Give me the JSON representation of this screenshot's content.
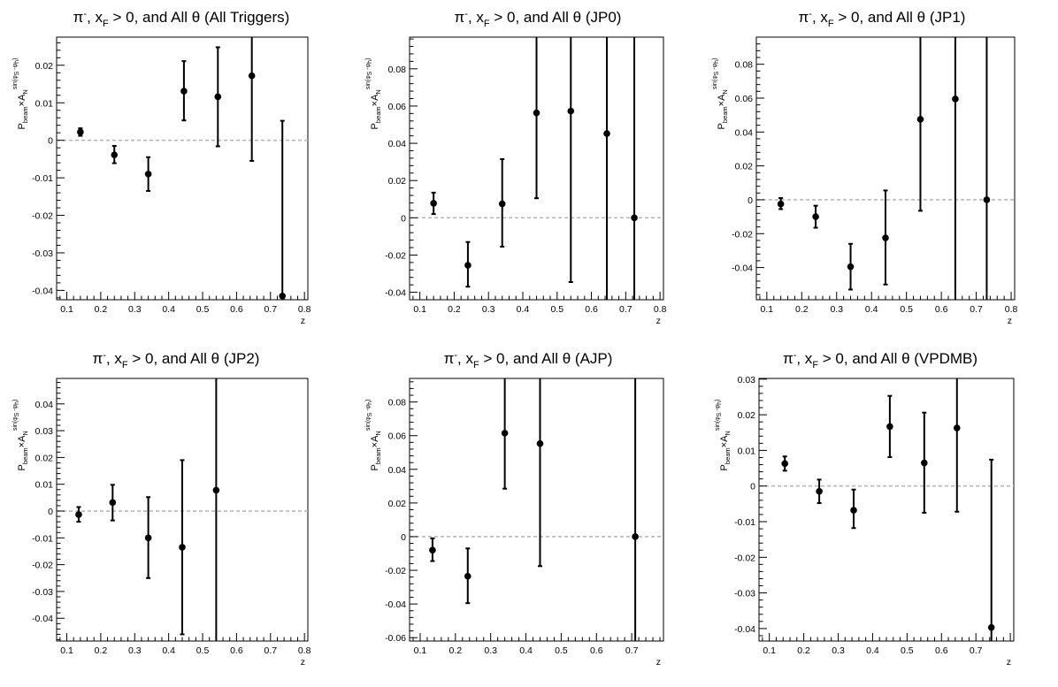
{
  "common": {
    "ylabel": {
      "p": "P",
      "beam": "beam",
      "times": "×A",
      "n": "N",
      "sup": "sin(φ",
      "s": "S",
      "minus": " -φ",
      "h": "h",
      "close": ")"
    },
    "xlabel": "z",
    "title_parts": {
      "pi": "π",
      "minus": "-",
      "mid1": ", x",
      "f": "F",
      "mid2": " > 0, and All θ "
    }
  },
  "chart_data": [
    {
      "type": "scatter",
      "trigger": "(All Triggers)",
      "xlabel": "z",
      "xlim": [
        0.07,
        0.81
      ],
      "ylim": [
        -0.0425,
        0.0275
      ],
      "xticks": [
        "0.1",
        "0.2",
        "0.3",
        "0.4",
        "0.5",
        "0.6",
        "0.7",
        "0.8"
      ],
      "yticks": [
        {
          "v": 0.02,
          "t": "0.02"
        },
        {
          "v": 0.01,
          "t": "0.01"
        },
        {
          "v": 0,
          "t": "0"
        },
        {
          "v": -0.01,
          "t": "-0.01"
        },
        {
          "v": -0.02,
          "t": "-0.02"
        },
        {
          "v": -0.03,
          "t": "-0.03"
        },
        {
          "v": -0.04,
          "t": "-0.04"
        }
      ],
      "points": [
        {
          "x": 0.14,
          "y": 0.0022,
          "lo": 0.0012,
          "hi": 0.0032
        },
        {
          "x": 0.24,
          "y": -0.0039,
          "lo": -0.0061,
          "hi": -0.0015
        },
        {
          "x": 0.34,
          "y": -0.009,
          "lo": -0.0135,
          "hi": -0.0045
        },
        {
          "x": 0.445,
          "y": 0.0131,
          "lo": 0.0053,
          "hi": 0.0211
        },
        {
          "x": 0.545,
          "y": 0.0116,
          "lo": -0.0016,
          "hi": 0.0248
        },
        {
          "x": 0.645,
          "y": 0.0172,
          "lo": -0.0055,
          "hi": 0.0275
        },
        {
          "x": 0.735,
          "y": -0.0415,
          "lo": -0.0425,
          "hi": 0.0052
        }
      ]
    },
    {
      "type": "scatter",
      "trigger": "(JP0)",
      "xlabel": "z",
      "xlim": [
        0.07,
        0.81
      ],
      "ylim": [
        -0.044,
        0.097
      ],
      "xticks": [
        "0.1",
        "0.2",
        "0.3",
        "0.4",
        "0.5",
        "0.6",
        "0.7",
        "0.8"
      ],
      "yticks": [
        {
          "v": 0.08,
          "t": "0.08"
        },
        {
          "v": 0.06,
          "t": "0.06"
        },
        {
          "v": 0.04,
          "t": "0.04"
        },
        {
          "v": 0.02,
          "t": "0.02"
        },
        {
          "v": 0,
          "t": "0"
        },
        {
          "v": -0.02,
          "t": "-0.02"
        },
        {
          "v": -0.04,
          "t": "-0.04"
        }
      ],
      "points": [
        {
          "x": 0.14,
          "y": 0.0078,
          "lo": 0.002,
          "hi": 0.0135
        },
        {
          "x": 0.24,
          "y": -0.0255,
          "lo": -0.037,
          "hi": -0.013
        },
        {
          "x": 0.34,
          "y": 0.0075,
          "lo": -0.0155,
          "hi": 0.0315
        },
        {
          "x": 0.44,
          "y": 0.0563,
          "lo": 0.0105,
          "hi": 0.097
        },
        {
          "x": 0.54,
          "y": 0.0573,
          "lo": -0.0345,
          "hi": 0.097
        },
        {
          "x": 0.645,
          "y": 0.0452,
          "lo": -0.044,
          "hi": 0.097
        },
        {
          "x": 0.725,
          "y": 0.0,
          "lo": -0.044,
          "hi": 0.097
        }
      ]
    },
    {
      "type": "scatter",
      "trigger": "(JP1)",
      "xlabel": "z",
      "xlim": [
        0.07,
        0.81
      ],
      "ylim": [
        -0.059,
        0.096
      ],
      "xticks": [
        "0.1",
        "0.2",
        "0.3",
        "0.4",
        "0.5",
        "0.6",
        "0.7",
        "0.8"
      ],
      "yticks": [
        {
          "v": 0.08,
          "t": "0.08"
        },
        {
          "v": 0.06,
          "t": "0.06"
        },
        {
          "v": 0.04,
          "t": "0.04"
        },
        {
          "v": 0.02,
          "t": "0.02"
        },
        {
          "v": 0,
          "t": "0"
        },
        {
          "v": -0.02,
          "t": "-0.02"
        },
        {
          "v": -0.04,
          "t": "-0.04"
        }
      ],
      "points": [
        {
          "x": 0.14,
          "y": -0.0025,
          "lo": -0.0055,
          "hi": 0.001
        },
        {
          "x": 0.24,
          "y": -0.01,
          "lo": -0.0165,
          "hi": -0.0035
        },
        {
          "x": 0.34,
          "y": -0.0395,
          "lo": -0.053,
          "hi": -0.026
        },
        {
          "x": 0.44,
          "y": -0.0225,
          "lo": -0.05,
          "hi": 0.0055
        },
        {
          "x": 0.54,
          "y": 0.0475,
          "lo": -0.0065,
          "hi": 0.096
        },
        {
          "x": 0.64,
          "y": 0.0595,
          "lo": -0.059,
          "hi": 0.096
        },
        {
          "x": 0.73,
          "y": 0.0,
          "lo": -0.059,
          "hi": 0.096
        }
      ]
    },
    {
      "type": "scatter",
      "trigger": "(JP2)",
      "xlabel": "z",
      "xlim": [
        0.07,
        0.81
      ],
      "ylim": [
        -0.0485,
        0.0495
      ],
      "xticks": [
        "0.1",
        "0.2",
        "0.3",
        "0.4",
        "0.5",
        "0.6",
        "0.7",
        "0.8"
      ],
      "yticks": [
        {
          "v": 0.04,
          "t": "0.04"
        },
        {
          "v": 0.03,
          "t": "0.03"
        },
        {
          "v": 0.02,
          "t": "0.02"
        },
        {
          "v": 0.01,
          "t": "0.01"
        },
        {
          "v": 0,
          "t": "0"
        },
        {
          "v": -0.01,
          "t": "-0.01"
        },
        {
          "v": -0.02,
          "t": "-0.02"
        },
        {
          "v": -0.03,
          "t": "-0.03"
        },
        {
          "v": -0.04,
          "t": "-0.04"
        }
      ],
      "points": [
        {
          "x": 0.135,
          "y": -0.0013,
          "lo": -0.004,
          "hi": 0.0015
        },
        {
          "x": 0.235,
          "y": 0.0032,
          "lo": -0.0035,
          "hi": 0.0098
        },
        {
          "x": 0.34,
          "y": -0.01,
          "lo": -0.025,
          "hi": 0.0052
        },
        {
          "x": 0.44,
          "y": -0.0135,
          "lo": -0.046,
          "hi": 0.019
        },
        {
          "x": 0.54,
          "y": 0.0078,
          "lo": -0.0485,
          "hi": 0.0495
        }
      ]
    },
    {
      "type": "scatter",
      "trigger": "(AJP)",
      "xlabel": "z",
      "xlim": [
        0.07,
        0.79
      ],
      "ylim": [
        -0.062,
        0.094
      ],
      "xticks": [
        "0.1",
        "0.2",
        "0.3",
        "0.4",
        "0.5",
        "0.6",
        "0.7"
      ],
      "yticks": [
        {
          "v": 0.08,
          "t": "0.08"
        },
        {
          "v": 0.06,
          "t": "0.06"
        },
        {
          "v": 0.04,
          "t": "0.04"
        },
        {
          "v": 0.02,
          "t": "0.02"
        },
        {
          "v": 0,
          "t": "0"
        },
        {
          "v": -0.02,
          "t": "-0.02"
        },
        {
          "v": -0.04,
          "t": "-0.04"
        },
        {
          "v": -0.06,
          "t": "-0.06"
        }
      ],
      "points": [
        {
          "x": 0.135,
          "y": -0.008,
          "lo": -0.0145,
          "hi": -0.001
        },
        {
          "x": 0.235,
          "y": -0.0235,
          "lo": -0.0395,
          "hi": -0.007
        },
        {
          "x": 0.34,
          "y": 0.0615,
          "lo": 0.0285,
          "hi": 0.094
        },
        {
          "x": 0.44,
          "y": 0.0553,
          "lo": -0.0175,
          "hi": 0.094
        },
        {
          "x": 0.71,
          "y": 0.0,
          "lo": -0.062,
          "hi": 0.094
        }
      ]
    },
    {
      "type": "scatter",
      "trigger": "(VPDMB)",
      "xlabel": "z",
      "xlim": [
        0.07,
        0.81
      ],
      "ylim": [
        -0.0435,
        0.0302
      ],
      "xticks": [
        "0.1",
        "0.2",
        "0.3",
        "0.4",
        "0.5",
        "0.6",
        "0.7"
      ],
      "yticks": [
        {
          "v": 0.03,
          "t": "0.03"
        },
        {
          "v": 0.02,
          "t": "0.02"
        },
        {
          "v": 0.01,
          "t": "0.01"
        },
        {
          "v": 0,
          "t": "0"
        },
        {
          "v": -0.01,
          "t": "-0.01"
        },
        {
          "v": -0.02,
          "t": "-0.02"
        },
        {
          "v": -0.03,
          "t": "-0.03"
        },
        {
          "v": -0.04,
          "t": "-0.04"
        }
      ],
      "points": [
        {
          "x": 0.145,
          "y": 0.0063,
          "lo": 0.0043,
          "hi": 0.0083
        },
        {
          "x": 0.245,
          "y": -0.0015,
          "lo": -0.0048,
          "hi": 0.0018
        },
        {
          "x": 0.345,
          "y": -0.0068,
          "lo": -0.0118,
          "hi": -0.001
        },
        {
          "x": 0.45,
          "y": 0.0167,
          "lo": 0.0081,
          "hi": 0.0253
        },
        {
          "x": 0.55,
          "y": 0.0065,
          "lo": -0.0075,
          "hi": 0.0206
        },
        {
          "x": 0.645,
          "y": 0.0163,
          "lo": -0.0072,
          "hi": 0.0302
        },
        {
          "x": 0.745,
          "y": -0.0397,
          "lo": -0.0435,
          "hi": 0.0074
        }
      ]
    }
  ]
}
